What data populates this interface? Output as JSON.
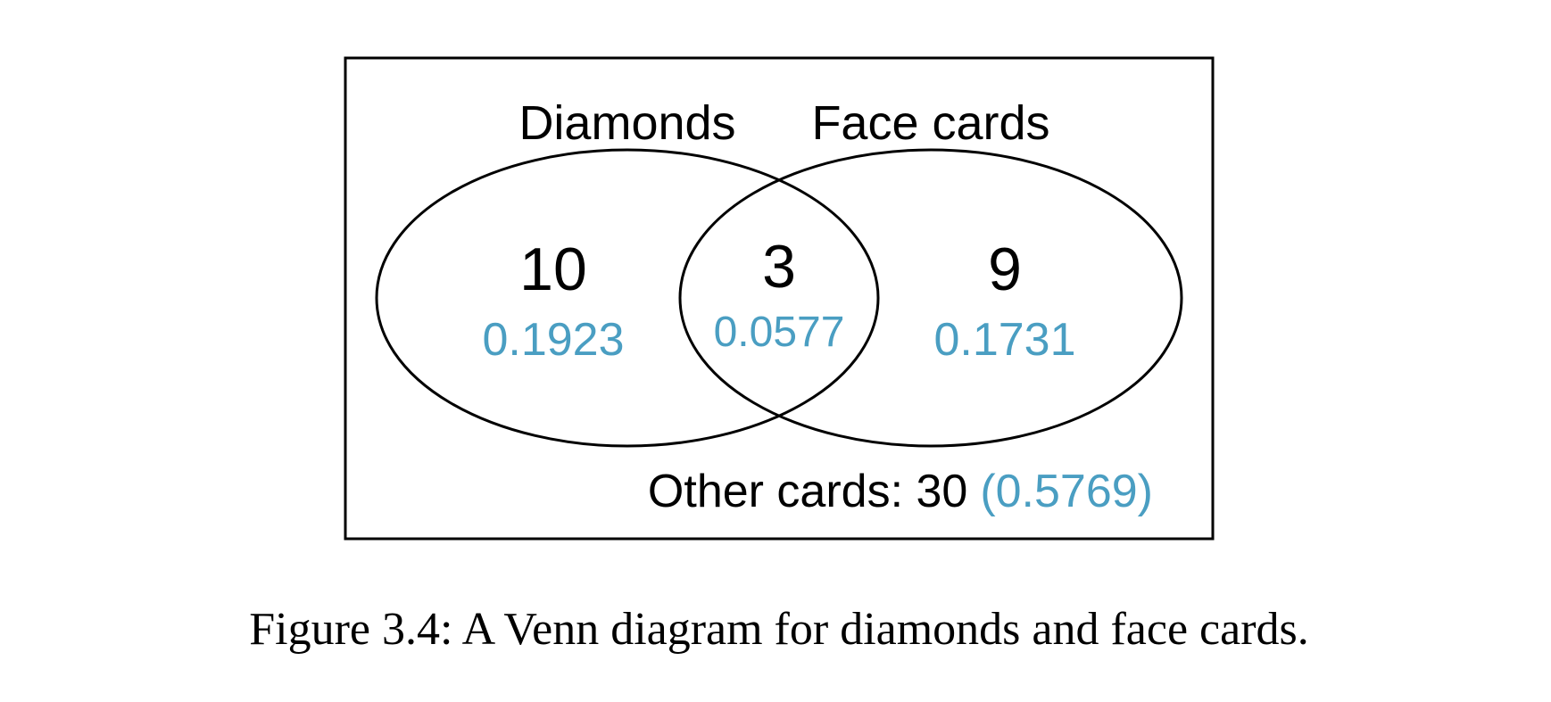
{
  "colors": {
    "counts": "#000000",
    "probabilities": "#4a9ec2",
    "outline": "#000000",
    "background": "#ffffff"
  },
  "sets": {
    "left": {
      "label": "Diamonds",
      "only_count": "10",
      "only_probability": "0.1923"
    },
    "right": {
      "label": "Face cards",
      "only_count": "9",
      "only_probability": "0.1731"
    },
    "intersection": {
      "count": "3",
      "probability": "0.0577"
    }
  },
  "outside": {
    "label": "Other cards: 30",
    "probability": "(0.5769)"
  },
  "caption": "Figure 3.4: A Venn diagram for diamonds and face cards."
}
